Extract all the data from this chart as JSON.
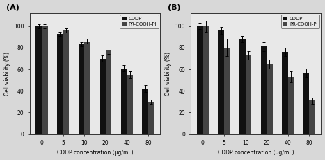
{
  "panel_A": {
    "label": "(A)",
    "categories": [
      0,
      5,
      10,
      20,
      40,
      80
    ],
    "CDDP_values": [
      100,
      93,
      83,
      70,
      61,
      42
    ],
    "PRCOOH_values": [
      100,
      96,
      86,
      78,
      55,
      30
    ],
    "CDDP_errors": [
      2,
      2,
      2,
      3,
      3,
      3
    ],
    "PRCOOH_errors": [
      2,
      2,
      2,
      4,
      3,
      2
    ],
    "ylabel": "Cell viability (%)",
    "xlabel": "CDDP concentration (μg/mL)",
    "ylim": [
      0,
      112
    ],
    "yticks": [
      0,
      20,
      40,
      60,
      80,
      100
    ]
  },
  "panel_B": {
    "label": "(B)",
    "categories": [
      0,
      5,
      10,
      20,
      40,
      80
    ],
    "CDDP_values": [
      100,
      96,
      88,
      81,
      76,
      57
    ],
    "PRCOOH_values": [
      100,
      80,
      73,
      65,
      53,
      31
    ],
    "CDDP_errors": [
      3,
      3,
      3,
      4,
      4,
      4
    ],
    "PRCOOH_errors": [
      5,
      8,
      4,
      4,
      5,
      3
    ],
    "ylabel": "Cell viability (%)",
    "xlabel": "CDDP concentration (μg/mL)",
    "ylim": [
      0,
      112
    ],
    "yticks": [
      0,
      20,
      40,
      60,
      80,
      100
    ]
  },
  "bar_width": 0.28,
  "color_CDDP": "#111111",
  "color_PRCOOH": "#444444",
  "legend_labels": [
    "CDDP",
    "PR-COOH-PI"
  ],
  "figure_facecolor": "#d8d8d8",
  "axes_facecolor": "#e8e8e8",
  "spine_color": "#333333"
}
